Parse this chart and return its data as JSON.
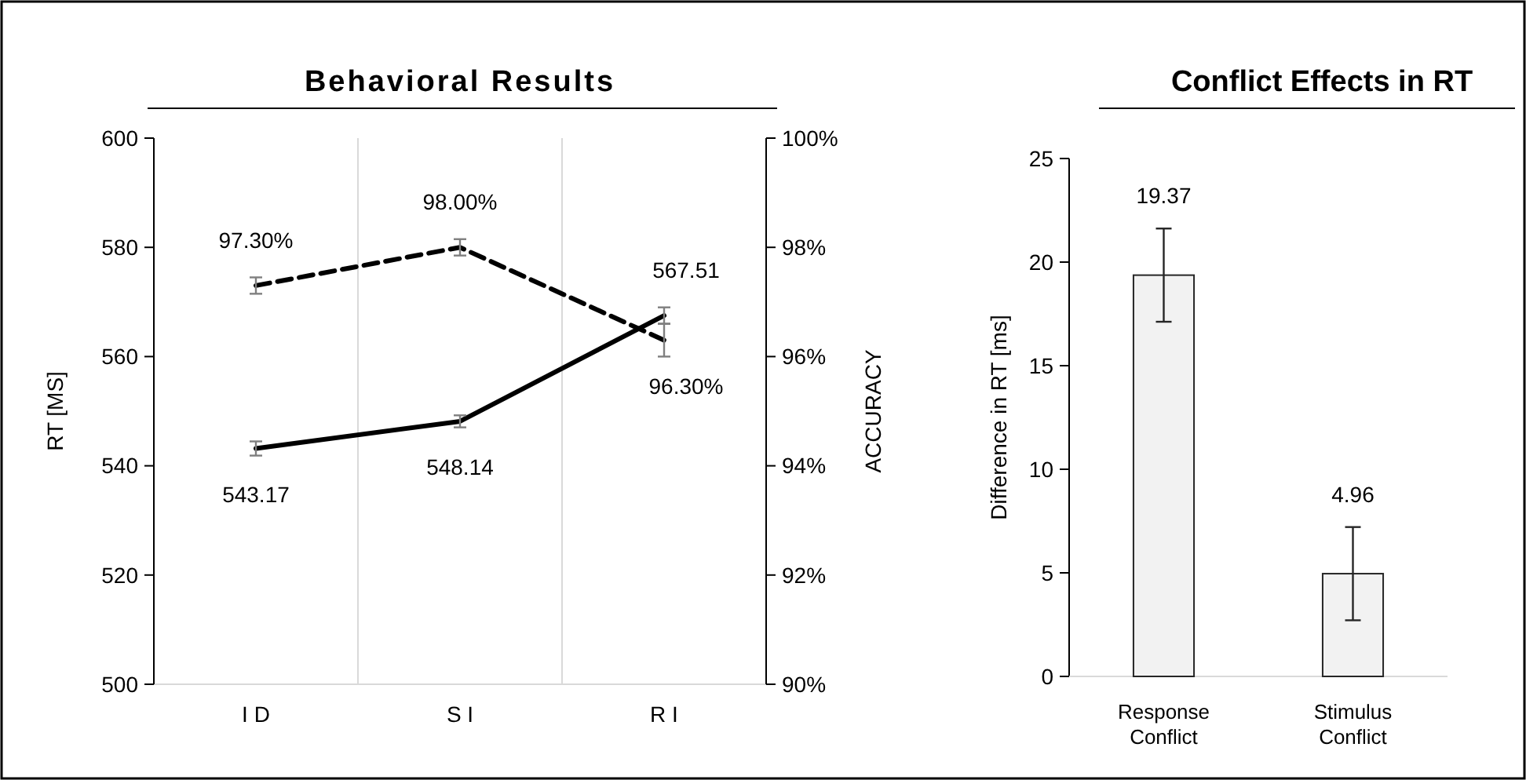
{
  "chart_data": [
    {
      "type": "line",
      "title": "Behavioral Results",
      "ylabel": "RT [MS]",
      "y2label": "ACCURACY",
      "categories": [
        "I D",
        "S I",
        "R I"
      ],
      "ylim": [
        500,
        600
      ],
      "yticks": [
        500,
        520,
        540,
        560,
        580,
        600
      ],
      "y2lim": [
        90,
        100
      ],
      "y2ticks": [
        {
          "value": 90,
          "label": "90%"
        },
        {
          "value": 92,
          "label": "92%"
        },
        {
          "value": 94,
          "label": "94%"
        },
        {
          "value": 96,
          "label": "96%"
        },
        {
          "value": 98,
          "label": "98%"
        },
        {
          "value": 100,
          "label": "100%"
        }
      ],
      "grid": "x",
      "marker": "none",
      "series": [
        {
          "color": "#000000",
          "line_style": "solid",
          "values": [
            543.17,
            548.14,
            567.51
          ],
          "errors": [
            1.3,
            1.1,
            1.5
          ],
          "value_labels": [
            "543.17",
            "548.14",
            "567.51"
          ]
        },
        {
          "color": "#000000",
          "line_style": "dashed",
          "axis": "y2",
          "values": [
            97.3,
            98.0,
            96.3
          ],
          "errors": [
            0.15,
            0.15,
            0.3
          ],
          "value_labels": [
            "97.30%",
            "98.00%",
            "96.30%"
          ]
        }
      ]
    },
    {
      "type": "bar",
      "title": "Conflict Effects in RT",
      "ylabel": "Difference in RT [ms]",
      "categories": [
        "Response Conflict",
        "Stimulus Conflict"
      ],
      "ylim": [
        0,
        25
      ],
      "yticks": [
        0,
        5,
        10,
        15,
        20,
        25
      ],
      "values": [
        19.37,
        4.96
      ],
      "errors": [
        2.25,
        2.25
      ],
      "color": "#f2f2f2",
      "value_labels": [
        "19.37",
        "4.96"
      ]
    }
  ]
}
